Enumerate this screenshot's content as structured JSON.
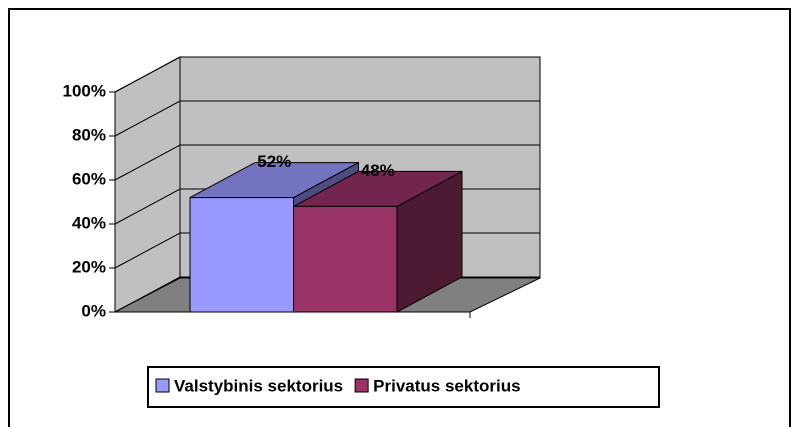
{
  "chart_data": {
    "type": "bar3d",
    "categories": [
      null
    ],
    "series": [
      {
        "name": "Valstybinis sektorius",
        "color": "#9999ff",
        "values": [
          52
        ],
        "value_labels": [
          "52%"
        ]
      },
      {
        "name": "Privatus sektorius",
        "color": "#993366",
        "values": [
          48
        ],
        "value_labels": [
          "48%"
        ]
      }
    ],
    "ylim": [
      0,
      100
    ],
    "yticks": [
      {
        "value": 0,
        "label": "0%"
      },
      {
        "value": 20,
        "label": "20%"
      },
      {
        "value": 40,
        "label": "40%"
      },
      {
        "value": 60,
        "label": "60%"
      },
      {
        "value": 80,
        "label": "80%"
      },
      {
        "value": 100,
        "label": "100%"
      }
    ],
    "grid": true,
    "legend": "bottom"
  }
}
